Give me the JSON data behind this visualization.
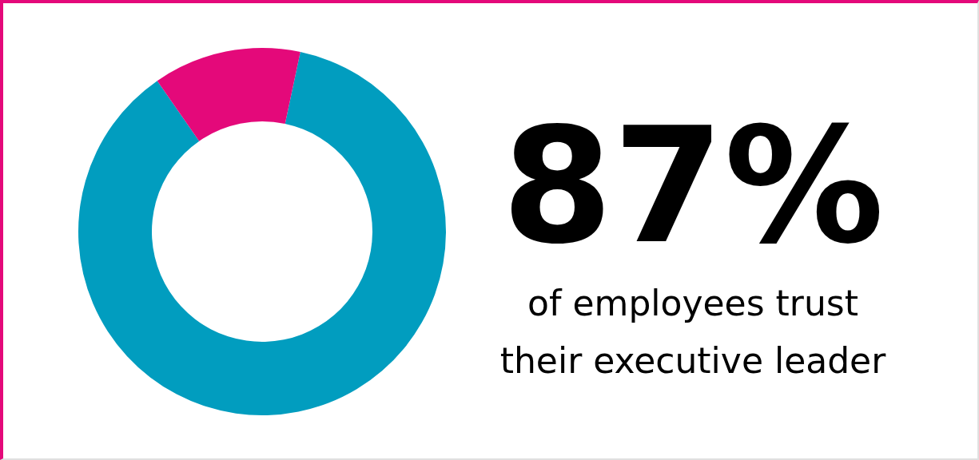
{
  "chart_data": {
    "type": "donut",
    "categories": [
      null,
      null
    ],
    "values": [
      87,
      13
    ],
    "colors": [
      "#019dbf",
      "#e4097a"
    ],
    "value_labels": [
      "87%",
      null
    ],
    "annotations": [
      "of employees trust their executive leader"
    ],
    "legend": false
  }
}
